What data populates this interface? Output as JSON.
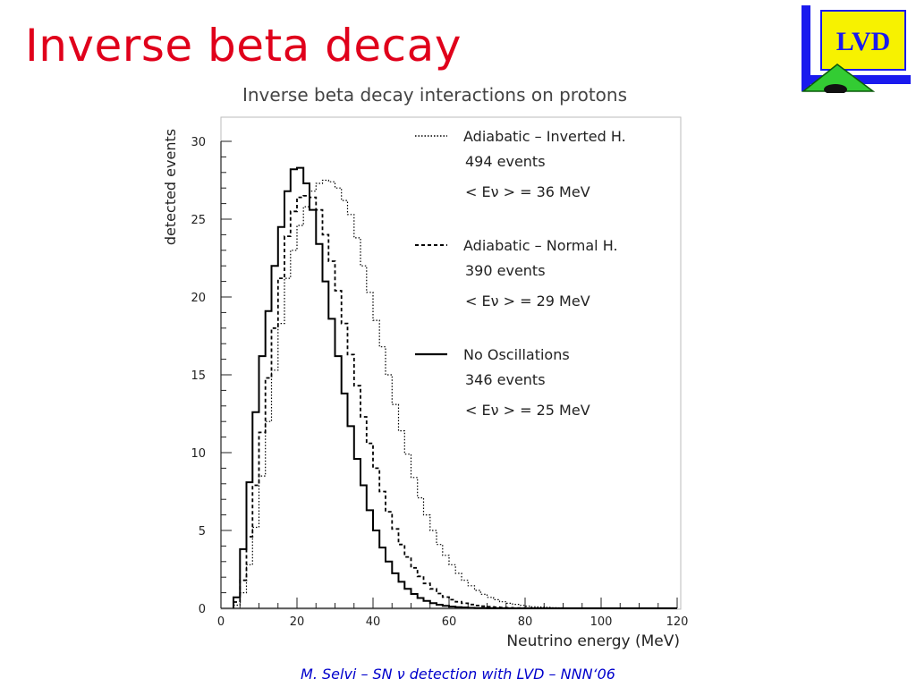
{
  "slide": {
    "title": "Inverse beta decay",
    "footer": "M. Selvi – SN ν detection with LVD – NNN‘06",
    "title_color": "#e0001b",
    "footer_color": "#0000cc"
  },
  "logo": {
    "text": "LVD",
    "box_color": "#f7f200",
    "border_color": "#1a1aee",
    "triangle_color": "#33cc33"
  },
  "chart_data": {
    "type": "line",
    "title": "Inverse beta decay interactions on protons",
    "xlabel": "Neutrino energy (MeV)",
    "ylabel": "detected events",
    "xlim": [
      0,
      120
    ],
    "ylim": [
      0,
      30
    ],
    "xticks": [
      "0",
      "20",
      "40",
      "60",
      "80",
      "100",
      "120"
    ],
    "yticks": [
      "0",
      "5",
      "10",
      "15",
      "20",
      "25",
      "30"
    ],
    "grid": false,
    "legend_position": "top-right",
    "series": [
      {
        "name": "Adiabatic – Inverted H.",
        "line_style": "dotted",
        "events_label": "494 events",
        "mean_label": "< Eν > = 36 MeV",
        "bin_edges": [
          3.3,
          5,
          6.7,
          8.3,
          10,
          11.7,
          13.3,
          15,
          16.7,
          18.3,
          20,
          21.7,
          23.3,
          25,
          26.7,
          28.3,
          30,
          31.7,
          33.3,
          35,
          36.7,
          38.3,
          40,
          41.7,
          43.3,
          45,
          46.7,
          48.3,
          50,
          51.7,
          53.3,
          55,
          56.7,
          58.3,
          60,
          61.7,
          63.3,
          65,
          66.7,
          68.3,
          70,
          71.7,
          73.3,
          75,
          76.7,
          78.3,
          80,
          81.7,
          83.3,
          85,
          86.7,
          88.3,
          90,
          91.7,
          93.3,
          95,
          96.7,
          98.3,
          100,
          101.7,
          103.3,
          105,
          106.7,
          108.3,
          110,
          111.7,
          113.3,
          115,
          116.7,
          118.3,
          120
        ],
        "values": [
          0.2,
          1.0,
          2.8,
          5.2,
          8.5,
          12.0,
          15.3,
          18.3,
          21.2,
          23.0,
          24.6,
          25.8,
          26.8,
          27.3,
          27.5,
          27.4,
          27.0,
          26.2,
          25.3,
          23.8,
          22.0,
          20.3,
          18.5,
          16.8,
          15.0,
          13.1,
          11.4,
          9.9,
          8.4,
          7.1,
          6.0,
          5.0,
          4.1,
          3.4,
          2.8,
          2.25,
          1.8,
          1.45,
          1.15,
          0.9,
          0.7,
          0.55,
          0.42,
          0.32,
          0.25,
          0.19,
          0.14,
          0.1,
          0.08,
          0.06,
          0.04,
          0.03,
          0.02,
          0.015,
          0.01,
          0.008,
          0.005,
          0.004,
          0.003,
          0.002,
          0.001,
          0.001,
          0,
          0,
          0,
          0,
          0,
          0,
          0,
          0
        ]
      },
      {
        "name": "Adiabatic – Normal H.",
        "line_style": "dashed",
        "events_label": "390 events",
        "mean_label": "< Eν > = 29 MeV",
        "bin_edges": [
          3.3,
          5,
          6.7,
          8.3,
          10,
          11.7,
          13.3,
          15,
          16.7,
          18.3,
          20,
          21.7,
          23.3,
          25,
          26.7,
          28.3,
          30,
          31.7,
          33.3,
          35,
          36.7,
          38.3,
          40,
          41.7,
          43.3,
          45,
          46.7,
          48.3,
          50,
          51.7,
          53.3,
          55,
          56.7,
          58.3,
          60,
          61.7,
          63.3,
          65,
          66.7,
          68.3,
          70,
          71.7,
          73.3,
          75,
          76.7,
          78.3,
          80,
          81.7,
          83.3,
          85,
          86.7,
          88.3,
          90,
          91.7,
          93.3,
          95,
          96.7,
          98.3,
          100,
          101.7,
          103.3,
          105,
          106.7,
          108.3,
          110,
          111.7,
          113.3,
          115,
          116.7,
          118.3,
          120
        ],
        "values": [
          0.4,
          1.8,
          4.6,
          7.9,
          11.3,
          14.8,
          18.0,
          21.2,
          23.9,
          25.5,
          26.4,
          26.5,
          26.4,
          25.6,
          24.0,
          22.3,
          20.4,
          18.3,
          16.3,
          14.3,
          12.3,
          10.6,
          9.0,
          7.5,
          6.2,
          5.1,
          4.1,
          3.3,
          2.6,
          2.05,
          1.6,
          1.25,
          0.95,
          0.72,
          0.55,
          0.42,
          0.32,
          0.24,
          0.18,
          0.13,
          0.1,
          0.07,
          0.05,
          0.035,
          0.025,
          0.018,
          0.012,
          0.008,
          0.005,
          0.003,
          0.002,
          0.001,
          0.001,
          0,
          0,
          0,
          0,
          0,
          0,
          0,
          0,
          0,
          0,
          0,
          0,
          0,
          0,
          0,
          0,
          0
        ]
      },
      {
        "name": "No Oscillations",
        "line_style": "solid",
        "events_label": "346 events",
        "mean_label": "< Eν > = 25 MeV",
        "bin_edges": [
          3.3,
          5,
          6.7,
          8.3,
          10,
          11.7,
          13.3,
          15,
          16.7,
          18.3,
          20,
          21.7,
          23.3,
          25,
          26.7,
          28.3,
          30,
          31.7,
          33.3,
          35,
          36.7,
          38.3,
          40,
          41.7,
          43.3,
          45,
          46.7,
          48.3,
          50,
          51.7,
          53.3,
          55,
          56.7,
          58.3,
          60,
          61.7,
          63.3,
          65,
          66.7,
          68.3,
          70,
          71.7,
          73.3,
          75,
          76.7,
          78.3,
          80,
          81.7,
          83.3,
          85,
          86.7,
          88.3,
          90,
          91.7,
          93.3,
          95,
          96.7,
          98.3,
          100,
          101.7,
          103.3,
          105,
          106.7,
          108.3,
          110,
          111.7,
          113.3,
          115,
          116.7,
          118.3,
          120
        ],
        "values": [
          0.7,
          3.8,
          8.1,
          12.6,
          16.2,
          19.1,
          22.0,
          24.5,
          26.8,
          28.2,
          28.3,
          27.3,
          25.6,
          23.4,
          21.0,
          18.6,
          16.2,
          13.8,
          11.7,
          9.6,
          7.9,
          6.3,
          5.0,
          3.9,
          3.0,
          2.25,
          1.7,
          1.25,
          0.92,
          0.66,
          0.47,
          0.33,
          0.23,
          0.16,
          0.11,
          0.07,
          0.05,
          0.03,
          0.02,
          0.013,
          0.008,
          0.005,
          0.003,
          0.002,
          0.001,
          0.001,
          0,
          0,
          0,
          0,
          0,
          0,
          0,
          0,
          0,
          0,
          0,
          0,
          0,
          0,
          0,
          0,
          0,
          0,
          0,
          0,
          0,
          0,
          0,
          0
        ]
      }
    ]
  }
}
